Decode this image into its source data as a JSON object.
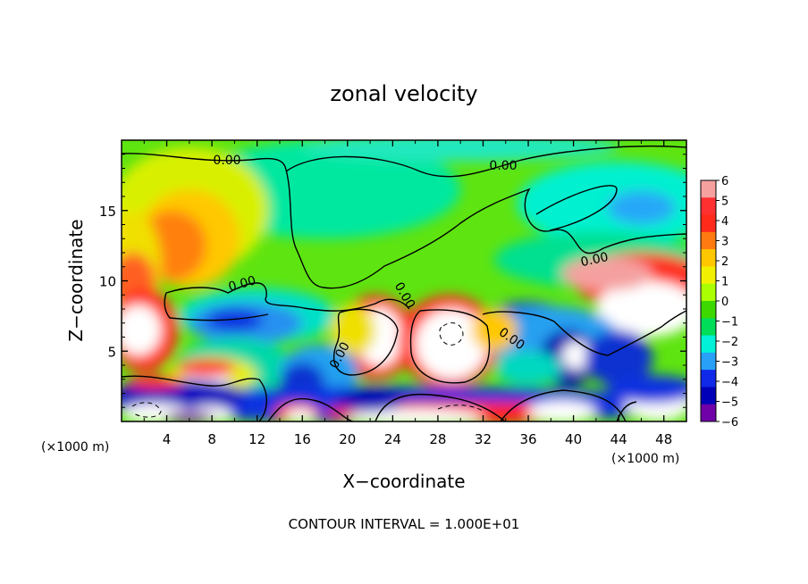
{
  "chart_data": {
    "type": "heatmap",
    "title": "zonal velocity",
    "xlabel": "X−coordinate",
    "ylabel": "Z−coordinate",
    "x_unit_left": "(×1000 m)",
    "x_unit_right": "(×1000 m)",
    "xlim": [
      0,
      50
    ],
    "ylim": [
      0,
      20
    ],
    "x_ticks": [
      4,
      8,
      12,
      16,
      20,
      24,
      28,
      32,
      36,
      40,
      44,
      48
    ],
    "y_ticks": [
      5,
      10,
      15
    ],
    "colorbar": {
      "ticks": [
        "6",
        "5",
        "4",
        "3",
        "2",
        "1",
        "0",
        "−1",
        "−2",
        "−3",
        "−4",
        "−5",
        "−6"
      ],
      "range": [
        -6,
        6
      ],
      "colors": [
        "#f6a0a0",
        "#ff3030",
        "#ff2a1a",
        "#ff7a10",
        "#ffc700",
        "#f0f000",
        "#aaff00",
        "#3cd800",
        "#00dd58",
        "#00f0d8",
        "#28a0f8",
        "#1028e8",
        "#0000b8",
        "#7000a8"
      ]
    },
    "contour_labels": [
      "0.00",
      "0.00",
      "0.00",
      "0.00",
      "0.00",
      "0.00",
      "0.00"
    ],
    "footer": "CONTOUR INTERVAL = 1.000E+01"
  }
}
